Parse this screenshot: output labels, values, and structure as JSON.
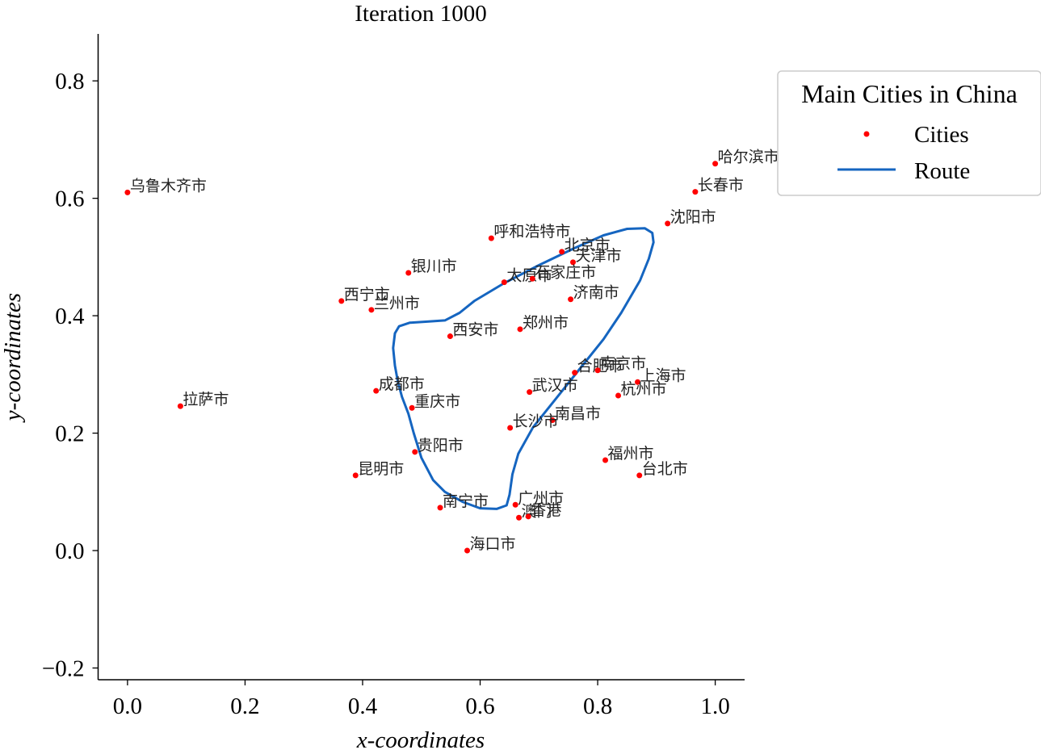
{
  "chart_data": {
    "type": "scatter",
    "title": "Iteration 1000",
    "xlabel": "x-coordinates",
    "ylabel": "y-coordinates",
    "xlim": [
      -0.05,
      1.05
    ],
    "ylim": [
      -0.22,
      0.88
    ],
    "xticks": [
      {
        "value": 0.0,
        "label": "0.0"
      },
      {
        "value": 0.2,
        "label": "0.2"
      },
      {
        "value": 0.4,
        "label": "0.4"
      },
      {
        "value": 0.6,
        "label": "0.6"
      },
      {
        "value": 0.8,
        "label": "0.8"
      },
      {
        "value": 1.0,
        "label": "1.0"
      }
    ],
    "yticks": [
      {
        "value": -0.2,
        "label": "−0.2"
      },
      {
        "value": 0.0,
        "label": "0.0"
      },
      {
        "value": 0.2,
        "label": "0.2"
      },
      {
        "value": 0.4,
        "label": "0.4"
      },
      {
        "value": 0.6,
        "label": "0.6"
      },
      {
        "value": 0.8,
        "label": "0.8"
      }
    ],
    "grid": false,
    "legend": {
      "title": "Main Cities in China",
      "placement": "outside-top-right",
      "entries": [
        {
          "label": "Cities",
          "marker": "dot",
          "color": "#ff0000"
        },
        {
          "label": "Route",
          "marker": "line",
          "color": "#1565c0"
        }
      ]
    },
    "colors": {
      "cities": "#ff0000",
      "route": "#1565c0"
    },
    "series": [
      {
        "name": "Cities",
        "points": [
          {
            "label": "乌鲁木齐市",
            "x": 0.0,
            "y": 0.61
          },
          {
            "label": "哈尔滨市",
            "x": 1.0,
            "y": 0.659
          },
          {
            "label": "长春市",
            "x": 0.966,
            "y": 0.611
          },
          {
            "label": "沈阳市",
            "x": 0.919,
            "y": 0.557
          },
          {
            "label": "呼和浩特市",
            "x": 0.619,
            "y": 0.532
          },
          {
            "label": "北京市",
            "x": 0.739,
            "y": 0.509
          },
          {
            "label": "天津市",
            "x": 0.758,
            "y": 0.491
          },
          {
            "label": "银川市",
            "x": 0.478,
            "y": 0.473
          },
          {
            "label": "太原市",
            "x": 0.641,
            "y": 0.457
          },
          {
            "label": "石家庄市",
            "x": 0.689,
            "y": 0.463
          },
          {
            "label": "济南市",
            "x": 0.754,
            "y": 0.428
          },
          {
            "label": "西宁市",
            "x": 0.364,
            "y": 0.425
          },
          {
            "label": "兰州市",
            "x": 0.415,
            "y": 0.41
          },
          {
            "label": "郑州市",
            "x": 0.668,
            "y": 0.377
          },
          {
            "label": "西安市",
            "x": 0.549,
            "y": 0.365
          },
          {
            "label": "合肥市",
            "x": 0.761,
            "y": 0.303
          },
          {
            "label": "南京市",
            "x": 0.8,
            "y": 0.307
          },
          {
            "label": "上海市",
            "x": 0.868,
            "y": 0.287
          },
          {
            "label": "杭州市",
            "x": 0.835,
            "y": 0.264
          },
          {
            "label": "武汉市",
            "x": 0.684,
            "y": 0.27
          },
          {
            "label": "成都市",
            "x": 0.423,
            "y": 0.272
          },
          {
            "label": "重庆市",
            "x": 0.484,
            "y": 0.243
          },
          {
            "label": "拉萨市",
            "x": 0.09,
            "y": 0.246
          },
          {
            "label": "南昌市",
            "x": 0.723,
            "y": 0.222
          },
          {
            "label": "长沙市",
            "x": 0.651,
            "y": 0.209
          },
          {
            "label": "贵阳市",
            "x": 0.489,
            "y": 0.168
          },
          {
            "label": "福州市",
            "x": 0.813,
            "y": 0.154
          },
          {
            "label": "台北市",
            "x": 0.871,
            "y": 0.128
          },
          {
            "label": "昆明市",
            "x": 0.388,
            "y": 0.128
          },
          {
            "label": "广州市",
            "x": 0.66,
            "y": 0.078
          },
          {
            "label": "南宁市",
            "x": 0.532,
            "y": 0.073
          },
          {
            "label": "澳门",
            "x": 0.666,
            "y": 0.056
          },
          {
            "label": "香港",
            "x": 0.682,
            "y": 0.058
          },
          {
            "label": "海口市",
            "x": 0.578,
            "y": 0.0
          }
        ]
      },
      {
        "name": "Route",
        "closed": true,
        "points": [
          {
            "x": 0.64,
            "y": 0.455
          },
          {
            "x": 0.7,
            "y": 0.486
          },
          {
            "x": 0.76,
            "y": 0.515
          },
          {
            "x": 0.81,
            "y": 0.537
          },
          {
            "x": 0.85,
            "y": 0.548
          },
          {
            "x": 0.88,
            "y": 0.549
          },
          {
            "x": 0.893,
            "y": 0.541
          },
          {
            "x": 0.895,
            "y": 0.525
          },
          {
            "x": 0.887,
            "y": 0.497
          },
          {
            "x": 0.872,
            "y": 0.46
          },
          {
            "x": 0.84,
            "y": 0.405
          },
          {
            "x": 0.81,
            "y": 0.36
          },
          {
            "x": 0.77,
            "y": 0.31
          },
          {
            "x": 0.73,
            "y": 0.26
          },
          {
            "x": 0.69,
            "y": 0.21
          },
          {
            "x": 0.665,
            "y": 0.165
          },
          {
            "x": 0.655,
            "y": 0.13
          },
          {
            "x": 0.65,
            "y": 0.095
          },
          {
            "x": 0.645,
            "y": 0.077
          },
          {
            "x": 0.628,
            "y": 0.071
          },
          {
            "x": 0.6,
            "y": 0.072
          },
          {
            "x": 0.57,
            "y": 0.083
          },
          {
            "x": 0.54,
            "y": 0.1
          },
          {
            "x": 0.52,
            "y": 0.12
          },
          {
            "x": 0.5,
            "y": 0.158
          },
          {
            "x": 0.487,
            "y": 0.2
          },
          {
            "x": 0.478,
            "y": 0.233
          },
          {
            "x": 0.467,
            "y": 0.262
          },
          {
            "x": 0.46,
            "y": 0.288
          },
          {
            "x": 0.455,
            "y": 0.315
          },
          {
            "x": 0.452,
            "y": 0.345
          },
          {
            "x": 0.455,
            "y": 0.37
          },
          {
            "x": 0.462,
            "y": 0.382
          },
          {
            "x": 0.48,
            "y": 0.388
          },
          {
            "x": 0.51,
            "y": 0.39
          },
          {
            "x": 0.54,
            "y": 0.392
          },
          {
            "x": 0.565,
            "y": 0.405
          },
          {
            "x": 0.59,
            "y": 0.425
          },
          {
            "x": 0.615,
            "y": 0.44
          }
        ]
      }
    ]
  }
}
